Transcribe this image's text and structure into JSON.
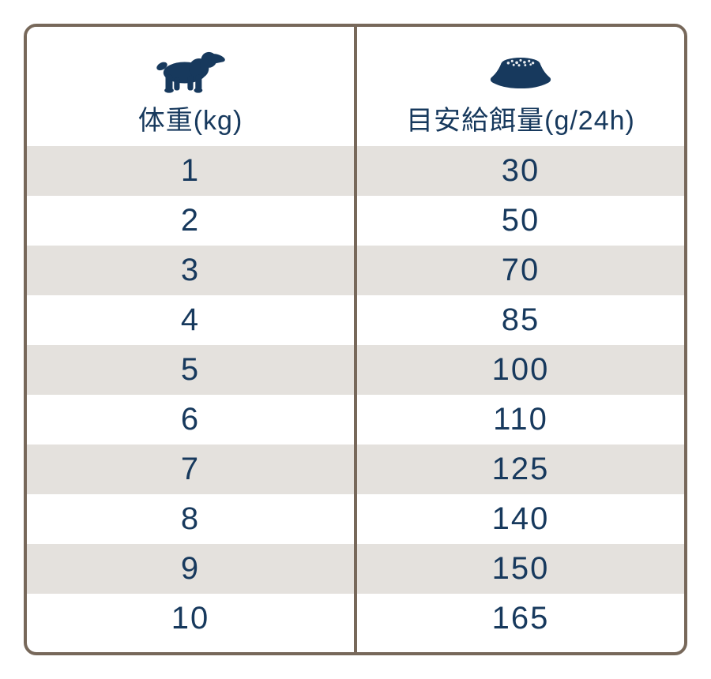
{
  "table": {
    "columns": [
      {
        "icon": "dog-icon",
        "label": "体重(kg)"
      },
      {
        "icon": "bowl-icon",
        "label": "目安給餌量(g/24h)"
      }
    ],
    "rows": [
      {
        "weight_kg": "1",
        "amount_g": "30"
      },
      {
        "weight_kg": "2",
        "amount_g": "50"
      },
      {
        "weight_kg": "3",
        "amount_g": "70"
      },
      {
        "weight_kg": "4",
        "amount_g": "85"
      },
      {
        "weight_kg": "5",
        "amount_g": "100"
      },
      {
        "weight_kg": "6",
        "amount_g": "110"
      },
      {
        "weight_kg": "7",
        "amount_g": "125"
      },
      {
        "weight_kg": "8",
        "amount_g": "140"
      },
      {
        "weight_kg": "9",
        "amount_g": "150"
      },
      {
        "weight_kg": "10",
        "amount_g": "165"
      }
    ]
  },
  "colors": {
    "accent_navy": "#17395d",
    "border_brown": "#77685a",
    "row_stripe": "#e4e1dd",
    "row_white": "#ffffff"
  }
}
